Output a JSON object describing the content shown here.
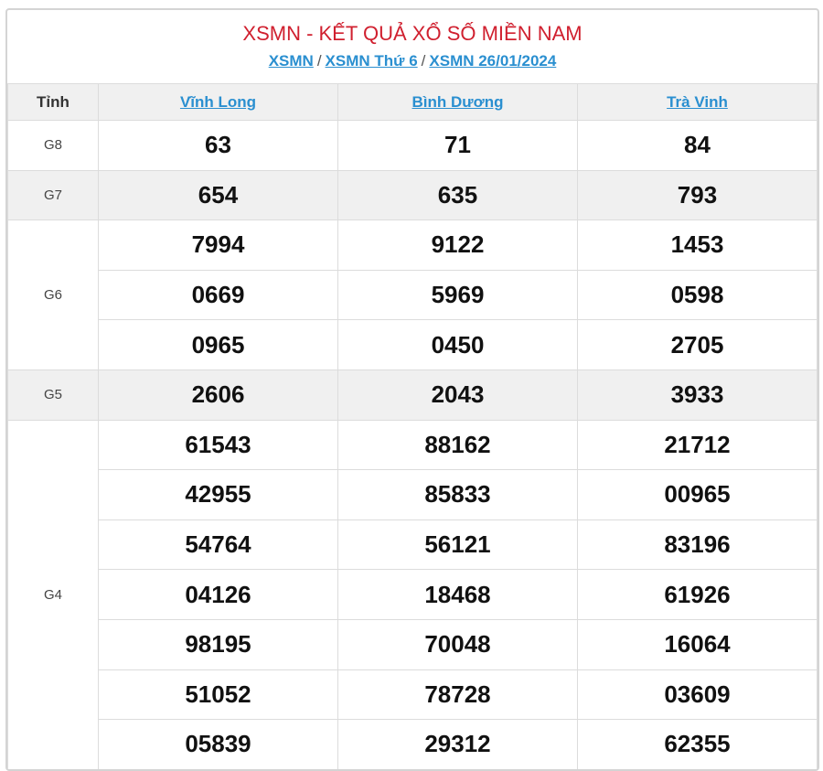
{
  "title": "XSMN - KẾT QUẢ XỔ SỐ MIỀN NAM",
  "breadcrumb": [
    {
      "label": "XSMN"
    },
    {
      "label": "XSMN Thứ 6"
    },
    {
      "label": "XSMN 26/01/2024"
    }
  ],
  "breadcrumb_sep": "/",
  "table": {
    "header": {
      "label": "Tỉnh",
      "provinces": [
        "Vĩnh Long",
        "Bình Dương",
        "Trà Vinh"
      ]
    },
    "prizes": [
      {
        "name": "G8",
        "shaded": false,
        "rows": [
          [
            "63",
            "71",
            "84"
          ]
        ]
      },
      {
        "name": "G7",
        "shaded": true,
        "rows": [
          [
            "654",
            "635",
            "793"
          ]
        ]
      },
      {
        "name": "G6",
        "shaded": false,
        "rows": [
          [
            "7994",
            "9122",
            "1453"
          ],
          [
            "0669",
            "5969",
            "0598"
          ],
          [
            "0965",
            "0450",
            "2705"
          ]
        ]
      },
      {
        "name": "G5",
        "shaded": true,
        "rows": [
          [
            "2606",
            "2043",
            "3933"
          ]
        ]
      },
      {
        "name": "G4",
        "shaded": false,
        "rows": [
          [
            "61543",
            "88162",
            "21712"
          ],
          [
            "42955",
            "85833",
            "00965"
          ],
          [
            "54764",
            "56121",
            "83196"
          ],
          [
            "04126",
            "18468",
            "61926"
          ],
          [
            "98195",
            "70048",
            "16064"
          ],
          [
            "51052",
            "78728",
            "03609"
          ],
          [
            "05839",
            "29312",
            "62355"
          ]
        ]
      }
    ]
  },
  "colors": {
    "title": "#d0202f",
    "link": "#2a8fd0",
    "shade": "#f0f0f0"
  }
}
